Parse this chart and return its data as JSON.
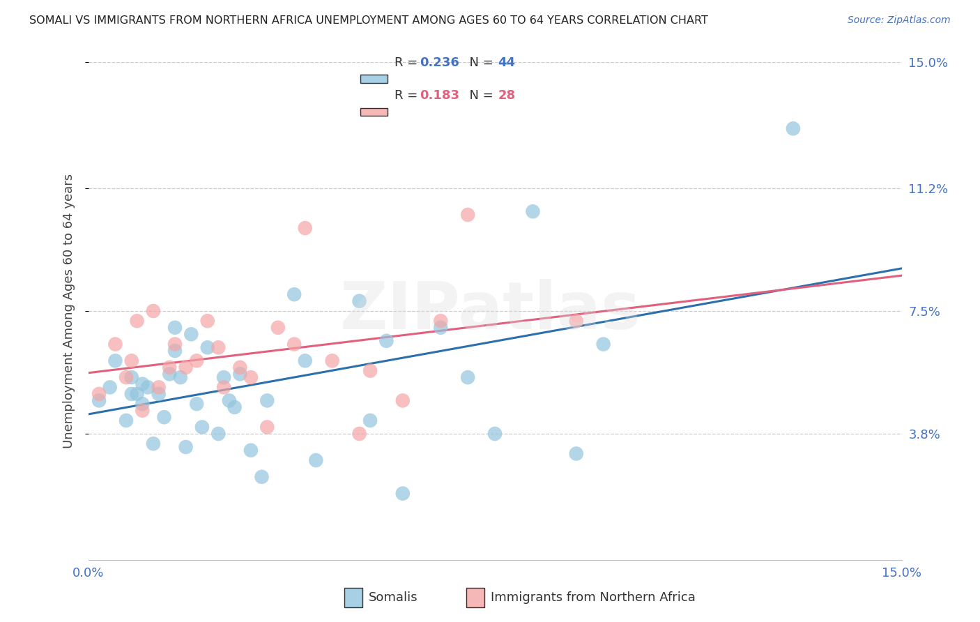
{
  "title": "SOMALI VS IMMIGRANTS FROM NORTHERN AFRICA UNEMPLOYMENT AMONG AGES 60 TO 64 YEARS CORRELATION CHART",
  "source": "Source: ZipAtlas.com",
  "ylabel": "Unemployment Among Ages 60 to 64 years",
  "xmin": 0.0,
  "xmax": 0.15,
  "ymin": 0.0,
  "ymax": 0.15,
  "yticks": [
    0.038,
    0.075,
    0.112,
    0.15
  ],
  "ytick_labels": [
    "3.8%",
    "7.5%",
    "11.2%",
    "15.0%"
  ],
  "legend_r1": "0.236",
  "legend_n1": "44",
  "legend_r2": "0.183",
  "legend_n2": "28",
  "color_somali": "#92c5de",
  "color_north_africa": "#f4a5a5",
  "trendline_color_somali": "#2c6fad",
  "trendline_color_north_africa": "#e0607e",
  "tick_color": "#4472c4",
  "title_color": "#222222",
  "source_color": "#4472c4",
  "background_color": "#ffffff",
  "watermark": "ZIPatlas",
  "legend_label1": "Somalis",
  "legend_label2": "Immigrants from Northern Africa",
  "somali_x": [
    0.002,
    0.004,
    0.005,
    0.007,
    0.008,
    0.008,
    0.009,
    0.01,
    0.01,
    0.011,
    0.012,
    0.013,
    0.014,
    0.015,
    0.016,
    0.016,
    0.017,
    0.018,
    0.019,
    0.02,
    0.021,
    0.022,
    0.024,
    0.025,
    0.026,
    0.027,
    0.028,
    0.03,
    0.032,
    0.033,
    0.038,
    0.04,
    0.042,
    0.05,
    0.052,
    0.055,
    0.058,
    0.065,
    0.07,
    0.075,
    0.082,
    0.09,
    0.095,
    0.13
  ],
  "somali_y": [
    0.048,
    0.052,
    0.06,
    0.042,
    0.05,
    0.055,
    0.05,
    0.047,
    0.053,
    0.052,
    0.035,
    0.05,
    0.043,
    0.056,
    0.063,
    0.07,
    0.055,
    0.034,
    0.068,
    0.047,
    0.04,
    0.064,
    0.038,
    0.055,
    0.048,
    0.046,
    0.056,
    0.033,
    0.025,
    0.048,
    0.08,
    0.06,
    0.03,
    0.078,
    0.042,
    0.066,
    0.02,
    0.07,
    0.055,
    0.038,
    0.105,
    0.032,
    0.065,
    0.13
  ],
  "north_africa_x": [
    0.002,
    0.005,
    0.007,
    0.008,
    0.009,
    0.01,
    0.012,
    0.013,
    0.015,
    0.016,
    0.018,
    0.02,
    0.022,
    0.024,
    0.025,
    0.028,
    0.03,
    0.033,
    0.035,
    0.038,
    0.04,
    0.045,
    0.05,
    0.052,
    0.058,
    0.065,
    0.07,
    0.09
  ],
  "north_africa_y": [
    0.05,
    0.065,
    0.055,
    0.06,
    0.072,
    0.045,
    0.075,
    0.052,
    0.058,
    0.065,
    0.058,
    0.06,
    0.072,
    0.064,
    0.052,
    0.058,
    0.055,
    0.04,
    0.07,
    0.065,
    0.1,
    0.06,
    0.038,
    0.057,
    0.048,
    0.072,
    0.104,
    0.072
  ]
}
